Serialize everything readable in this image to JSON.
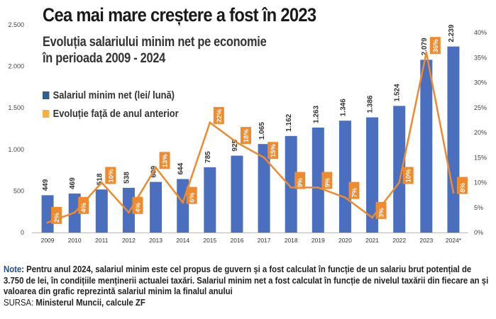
{
  "title": "Cea mai mare creștere a fost în 2023",
  "subtitle_line1": "Evoluția salariului minim net pe economie",
  "subtitle_line2": "în perioada 2009 - 2024",
  "legend": {
    "bar": "Salariul minim net (lei/ lună)",
    "line": "Evoluție față de anul anterior"
  },
  "colors": {
    "bar": "#4a6fbf",
    "line": "#f08a2e",
    "label_box": "#f08a2e"
  },
  "note": {
    "label": "Note",
    "text": ": Pentru anul 2024, salariul minim este cel propus de guvern și a fost calculat în funcție de un salariu brut potențial de 3.750 de lei, în condițiile menținerii actualei taxări. Salariul minim net a fost calculat în funcție de nivelul taxării din fiecare an și valoarea din grafic reprezintă salariul minim la finalul anului",
    "source_label": "SURSA: ",
    "source": "Ministerul Muncii, calcule ZF"
  },
  "chart_data": {
    "type": "bar",
    "title": "Cea mai mare creștere a fost în 2023",
    "categories": [
      "2009",
      "2010",
      "2011",
      "2012",
      "2013",
      "2014",
      "2015",
      "2016",
      "2017",
      "2018",
      "2019",
      "2020",
      "2021",
      "2022",
      "2023",
      "2024*"
    ],
    "series": [
      {
        "name": "Salariul minim net (lei/ lună)",
        "type": "bar",
        "axis": "left",
        "values": [
          449,
          469,
          518,
          538,
          609,
          644,
          785,
          925,
          1065,
          1162,
          1263,
          1346,
          1386,
          1524,
          2079,
          2239
        ],
        "labels": [
          "449",
          "469",
          "518",
          "538",
          "609",
          "644",
          "785",
          "925",
          "1.065",
          "1.162",
          "1.263",
          "1.346",
          "1.386",
          "1.524",
          "2.079",
          "2.239"
        ]
      },
      {
        "name": "Evoluție față de anul anterior",
        "type": "line",
        "axis": "right",
        "values": [
          2,
          4,
          10,
          4,
          13,
          6,
          22,
          18,
          15,
          9,
          9,
          7,
          3,
          10,
          36,
          8
        ],
        "labels": [
          "2%",
          "4%",
          "10%",
          "4%",
          "13%",
          "6%",
          "22%",
          "18%",
          "15%",
          "9%",
          "9%",
          "7%",
          "3%",
          "10%",
          "36%",
          "8%"
        ]
      }
    ],
    "y_left": {
      "min": 0,
      "max": 2500,
      "ticks": [
        "0",
        "500",
        "1.000",
        "1.500",
        "2.000",
        "2.500"
      ],
      "tick_values": [
        0,
        500,
        1000,
        1500,
        2000,
        2500
      ]
    },
    "y_right": {
      "min": 0,
      "max": 40,
      "ticks": [
        "0%",
        "5%",
        "10%",
        "15%",
        "20%",
        "25%",
        "30%",
        "35%",
        "40%"
      ],
      "tick_values": [
        0,
        5,
        10,
        15,
        20,
        25,
        30,
        35,
        40
      ]
    },
    "xlabel": "",
    "ylabel": "",
    "grid": false,
    "legend_position": "top-left"
  }
}
